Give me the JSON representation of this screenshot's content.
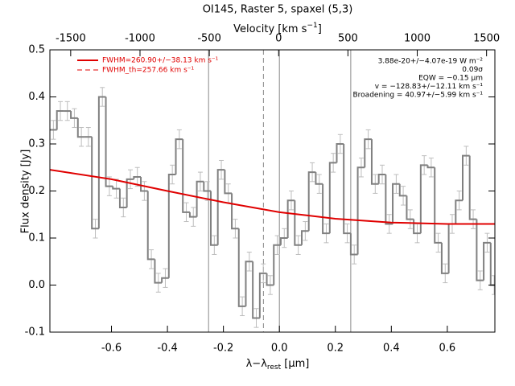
{
  "chart_data": {
    "type": "histogram",
    "title": "OI145, Raster 5, spaxel (5,3)",
    "xlabel_parts": [
      "λ−λ",
      "rest",
      " [μm]"
    ],
    "ylabel": "Flux density [Jy]",
    "x2label_parts": [
      "Velocity [km s",
      "−1",
      "]"
    ],
    "xlim": [
      -0.82,
      0.77
    ],
    "ylim": [
      -0.1,
      0.5
    ],
    "x2lim": [
      -1650,
      1560
    ],
    "xticks": [
      -0.6,
      -0.4,
      -0.2,
      {
        "value": 0,
        "label": "0.0"
      },
      0.2,
      0.4,
      0.6
    ],
    "yticks": [
      -0.1,
      {
        "value": 0,
        "label": "0.0"
      },
      0.1,
      0.2,
      0.3,
      0.4,
      0.5
    ],
    "x2ticks": [
      -1500,
      -1000,
      -500,
      0,
      500,
      1000,
      1500
    ],
    "bins": [
      -0.82,
      -0.795,
      -0.77,
      -0.745,
      -0.72,
      -0.695,
      -0.67,
      -0.645,
      -0.62,
      -0.595,
      -0.57,
      -0.545,
      -0.52,
      -0.495,
      -0.47,
      -0.445,
      -0.42,
      -0.395,
      -0.37,
      -0.345,
      -0.32,
      -0.295,
      -0.27,
      -0.245,
      -0.22,
      -0.195,
      -0.17,
      -0.145,
      -0.12,
      -0.095,
      -0.07,
      -0.045,
      -0.02,
      0.005,
      0.03,
      0.055,
      0.08,
      0.105,
      0.13,
      0.155,
      0.18,
      0.205,
      0.23,
      0.255,
      0.28,
      0.305,
      0.33,
      0.355,
      0.38,
      0.405,
      0.43,
      0.455,
      0.48,
      0.505,
      0.53,
      0.555,
      0.58,
      0.605,
      0.63,
      0.655,
      0.68,
      0.705,
      0.73,
      0.755,
      0.78
    ],
    "values": [
      0.33,
      0.37,
      0.37,
      0.355,
      0.315,
      0.315,
      0.12,
      0.4,
      0.21,
      0.205,
      0.165,
      0.225,
      0.23,
      0.2,
      0.055,
      0.005,
      0.015,
      0.235,
      0.31,
      0.155,
      0.145,
      0.22,
      0.2,
      0.085,
      0.245,
      0.195,
      0.12,
      -0.045,
      0.05,
      -0.07,
      0.025,
      0.0,
      0.085,
      0.1,
      0.18,
      0.085,
      0.115,
      0.24,
      0.215,
      0.11,
      0.26,
      0.3,
      0.11,
      0.065,
      0.25,
      0.31,
      0.215,
      0.235,
      0.13,
      0.215,
      0.19,
      0.14,
      0.11,
      0.255,
      0.25,
      0.09,
      0.025,
      0.13,
      0.18,
      0.275,
      0.14,
      0.01,
      0.09,
      0.0
    ],
    "errors": [
      0.02,
      0.02,
      0.02,
      0.02,
      0.02,
      0.02,
      0.02,
      0.02,
      0.02,
      0.02,
      0.02,
      0.02,
      0.02,
      0.02,
      0.02,
      0.02,
      0.02,
      0.02,
      0.02,
      0.02,
      0.02,
      0.02,
      0.02,
      0.02,
      0.02,
      0.02,
      0.02,
      0.02,
      0.02,
      0.02,
      0.02,
      0.02,
      0.02,
      0.02,
      0.02,
      0.02,
      0.02,
      0.02,
      0.02,
      0.02,
      0.02,
      0.02,
      0.02,
      0.02,
      0.02,
      0.02,
      0.02,
      0.02,
      0.02,
      0.02,
      0.02,
      0.02,
      0.02,
      0.02,
      0.02,
      0.02,
      0.02,
      0.02,
      0.02,
      0.02,
      0.02,
      0.02,
      0.02,
      0.02
    ],
    "color": "#808080",
    "error_color": "#bdbdbd",
    "fit": {
      "name": "FWHM=260.90+/−38.13 km s⁻¹",
      "color": "#e00000",
      "x": [
        -0.82,
        -0.6,
        -0.4,
        -0.2,
        0,
        0.2,
        0.4,
        0.6,
        0.77
      ],
      "values": [
        0.245,
        0.225,
        0.2,
        0.176,
        0.155,
        0.141,
        0.133,
        0.13,
        0.13
      ]
    },
    "fit_th": {
      "name": "FWHM_th=257.66 km s⁻¹",
      "color": "#e00000"
    },
    "reference_lines": [
      {
        "x": -0.253,
        "style": "solid"
      },
      {
        "x": -0.057,
        "style": "dashed"
      },
      {
        "x": 0,
        "style": "solid"
      },
      {
        "x": 0.255,
        "style": "solid"
      }
    ],
    "annotations": [
      "3.88e-20+/−4.07e-19 W m⁻²",
      "0.09σ",
      "EQW = −0.15 μm",
      "v = −128.83+/−12.11 km s⁻¹",
      "Broadening = 40.97+/−5.99 km s⁻¹"
    ]
  }
}
